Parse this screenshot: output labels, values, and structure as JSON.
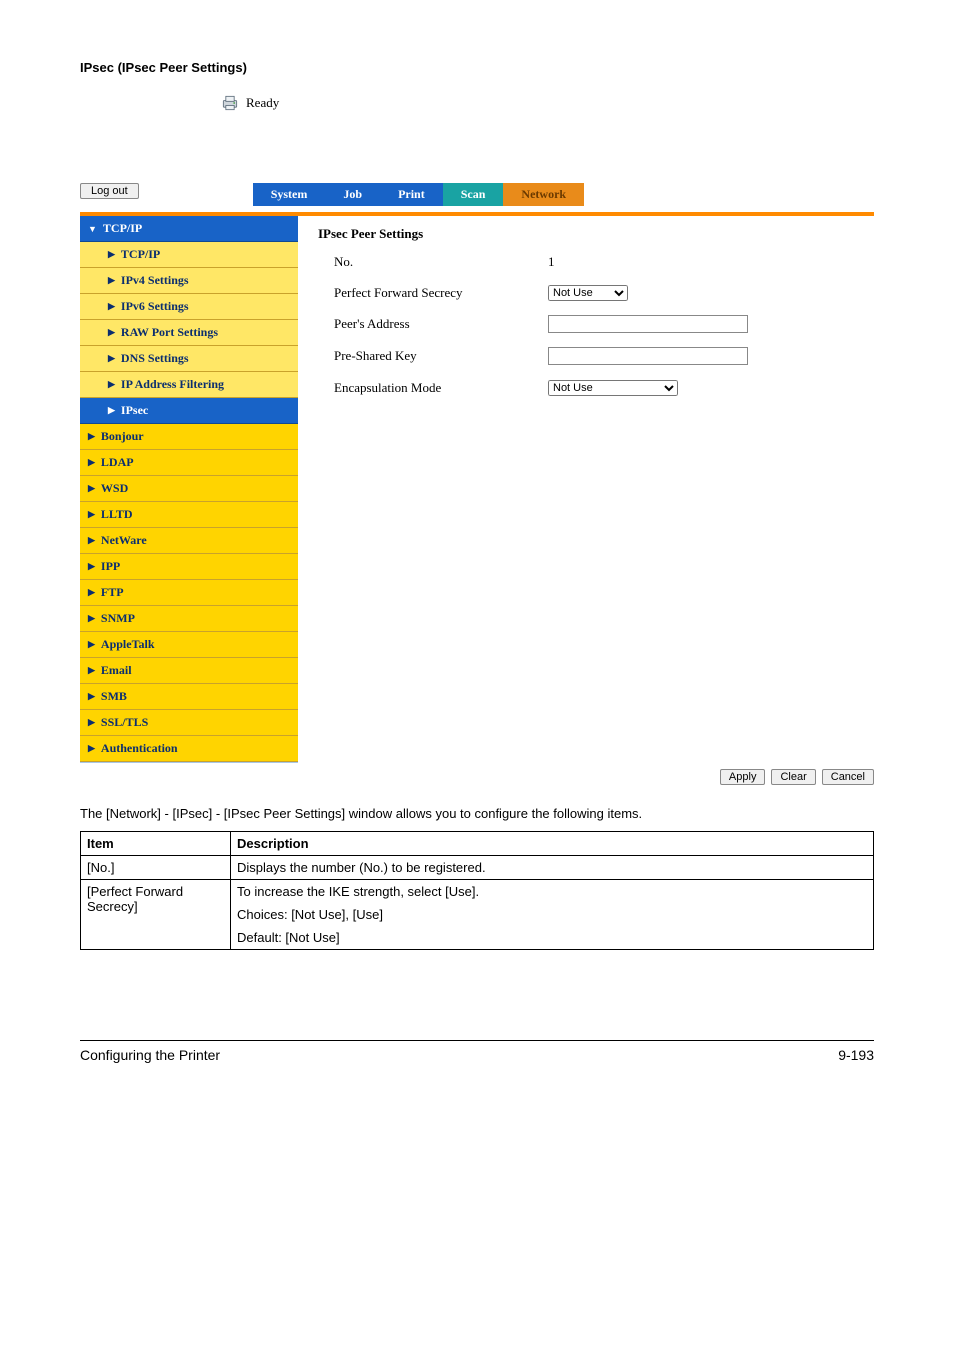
{
  "heading": "IPsec (IPsec Peer Settings)",
  "status": {
    "text": "Ready"
  },
  "logout_label": "Log out",
  "tabs": [
    {
      "label": "System",
      "cls": "blue"
    },
    {
      "label": "Job",
      "cls": "blue"
    },
    {
      "label": "Print",
      "cls": "blue"
    },
    {
      "label": "Scan",
      "cls": "teal"
    },
    {
      "label": "Network",
      "cls": "orange"
    }
  ],
  "sidebar": [
    {
      "label": "TCP/IP",
      "type": "top",
      "arrow": "▼"
    },
    {
      "label": "TCP/IP",
      "type": "sub",
      "arrow": "▶"
    },
    {
      "label": "IPv4 Settings",
      "type": "sub",
      "arrow": "▶"
    },
    {
      "label": "IPv6 Settings",
      "type": "sub",
      "arrow": "▶"
    },
    {
      "label": "RAW Port Settings",
      "type": "sub",
      "arrow": "▶"
    },
    {
      "label": "DNS Settings",
      "type": "sub",
      "arrow": "▶"
    },
    {
      "label": "IP Address Filtering",
      "type": "sub",
      "arrow": "▶"
    },
    {
      "label": "IPsec",
      "type": "active",
      "arrow": "▶"
    },
    {
      "label": "Bonjour",
      "type": "yellow",
      "arrow": "▶"
    },
    {
      "label": "LDAP",
      "type": "yellow",
      "arrow": "▶"
    },
    {
      "label": "WSD",
      "type": "yellow",
      "arrow": "▶"
    },
    {
      "label": "LLTD",
      "type": "yellow",
      "arrow": "▶"
    },
    {
      "label": "NetWare",
      "type": "yellow",
      "arrow": "▶"
    },
    {
      "label": "IPP",
      "type": "yellow",
      "arrow": "▶"
    },
    {
      "label": "FTP",
      "type": "yellow",
      "arrow": "▶"
    },
    {
      "label": "SNMP",
      "type": "yellow",
      "arrow": "▶"
    },
    {
      "label": "AppleTalk",
      "type": "yellow",
      "arrow": "▶"
    },
    {
      "label": "Email",
      "type": "yellow",
      "arrow": "▶"
    },
    {
      "label": "SMB",
      "type": "yellow",
      "arrow": "▶"
    },
    {
      "label": "SSL/TLS",
      "type": "yellow",
      "arrow": "▶"
    },
    {
      "label": "Authentication",
      "type": "yellow",
      "arrow": "▶"
    }
  ],
  "content": {
    "title": "IPsec Peer Settings",
    "rows": {
      "no": {
        "label": "No.",
        "value": "1"
      },
      "pfs": {
        "label": "Perfect Forward Secrecy",
        "value": "Not Use"
      },
      "peer": {
        "label": "Peer's Address",
        "value": ""
      },
      "psk": {
        "label": "Pre-Shared Key",
        "value": ""
      },
      "encap": {
        "label": "Encapsulation Mode",
        "value": "Not Use"
      }
    }
  },
  "buttons": {
    "apply": "Apply",
    "clear": "Clear",
    "cancel": "Cancel"
  },
  "body_text": "The [Network] - [IPsec] - [IPsec Peer Settings] window allows you to configure the following items.",
  "table": {
    "head": {
      "item": "Item",
      "desc": "Description"
    },
    "rows": [
      {
        "item": "[No.]",
        "desc": [
          "Displays the number (No.) to be registered."
        ]
      },
      {
        "item": "[Perfect Forward Secrecy]",
        "desc": [
          "To increase the IKE strength, select [Use].",
          "Choices: [Not Use], [Use]",
          "Default:  [Not Use]"
        ]
      }
    ]
  },
  "footer": {
    "left": "Configuring the Printer",
    "right": "9-193"
  }
}
